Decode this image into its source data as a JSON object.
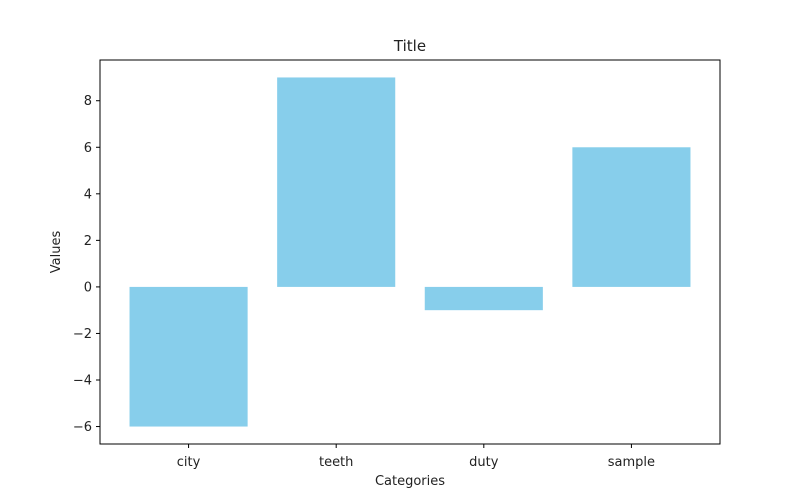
{
  "chart_data": {
    "type": "bar",
    "title": "Title",
    "xlabel": "Categories",
    "ylabel": "Values",
    "categories": [
      "city",
      "teeth",
      "duty",
      "sample"
    ],
    "values": [
      -6,
      9,
      -1,
      6
    ],
    "ylim": [
      -6.75,
      9.75
    ],
    "yticks": [
      -6,
      -4,
      -2,
      0,
      2,
      4,
      6,
      8
    ],
    "ytick_labels": [
      "−6",
      "−4",
      "−2",
      "0",
      "2",
      "4",
      "6",
      "8"
    ],
    "grid": false,
    "bar_color": "#87ceeb"
  }
}
